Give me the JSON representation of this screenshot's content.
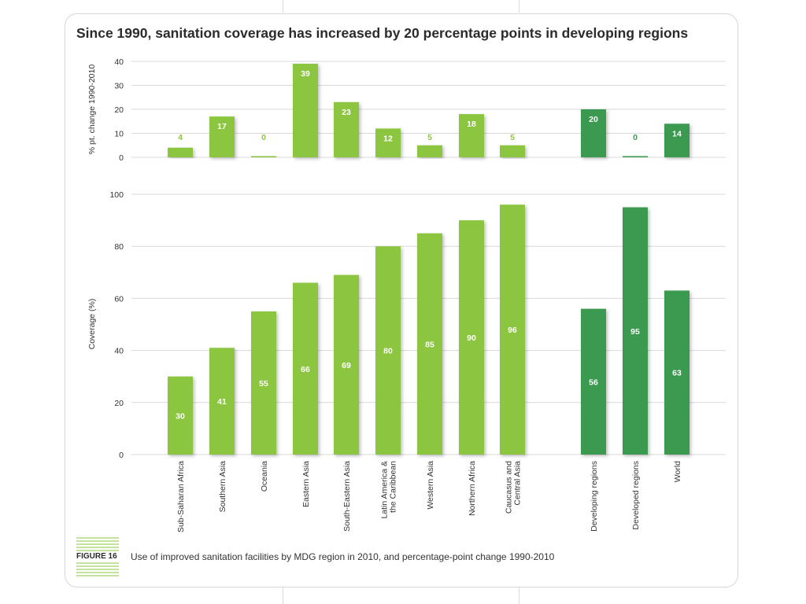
{
  "title": "Since 1990, sanitation coverage has increased by 20 percentage points in developing regions",
  "figure_label": "FIGURE 16",
  "caption": "Use of improved sanitation facilities by MDG region in 2010, and percentage-point change 1990-2010",
  "colors": {
    "region": "#8cc63f",
    "aggregate": "#3a9a4f",
    "grid": "#d9d9d9",
    "text": "#333333"
  },
  "chart_data": [
    {
      "type": "bar",
      "title": "",
      "xlabel": "",
      "ylabel": "% pt. change 1990-2010",
      "ylim": [
        0,
        40
      ],
      "yticks": [
        0,
        10,
        20,
        30,
        40
      ],
      "grid": true,
      "categories": [
        "Sub-Saharan Africa",
        "Southern Asia",
        "Oceania",
        "Eastern Asia",
        "South-Eastern Asia",
        "Latin America & the Caribbean",
        "Western Asia",
        "Northern Africa",
        "Caucasus and Central Asia",
        "Developing regions",
        "Developed regions",
        "World"
      ],
      "values": [
        4,
        17,
        0,
        39,
        23,
        12,
        5,
        18,
        5,
        20,
        0,
        14
      ]
    },
    {
      "type": "bar",
      "title": "",
      "xlabel": "",
      "ylabel": "Coverage (%)",
      "ylim": [
        0,
        100
      ],
      "yticks": [
        0,
        20,
        40,
        60,
        80,
        100
      ],
      "grid": true,
      "categories": [
        "Sub-Saharan Africa",
        "Southern Asia",
        "Oceania",
        "Eastern Asia",
        "South-Eastern Asia",
        "Latin America & the Caribbean",
        "Western Asia",
        "Northern Africa",
        "Caucasus and Central Asia",
        "Developing regions",
        "Developed regions",
        "World"
      ],
      "values": [
        30,
        41,
        55,
        66,
        69,
        80,
        85,
        90,
        96,
        56,
        95,
        63
      ]
    }
  ],
  "x_labels": [
    [
      "Sub-Saharan Africa"
    ],
    [
      "Southern Asia"
    ],
    [
      "Oceania"
    ],
    [
      "Eastern Asia"
    ],
    [
      "South-Eastern Asia"
    ],
    [
      "Latin America &",
      "the Caribbean"
    ],
    [
      "Western Asia"
    ],
    [
      "Northern Africa"
    ],
    [
      "Caucasus and",
      "Central Asia"
    ],
    [
      "Developing regions"
    ],
    [
      "Developed regions"
    ],
    [
      "World"
    ]
  ]
}
